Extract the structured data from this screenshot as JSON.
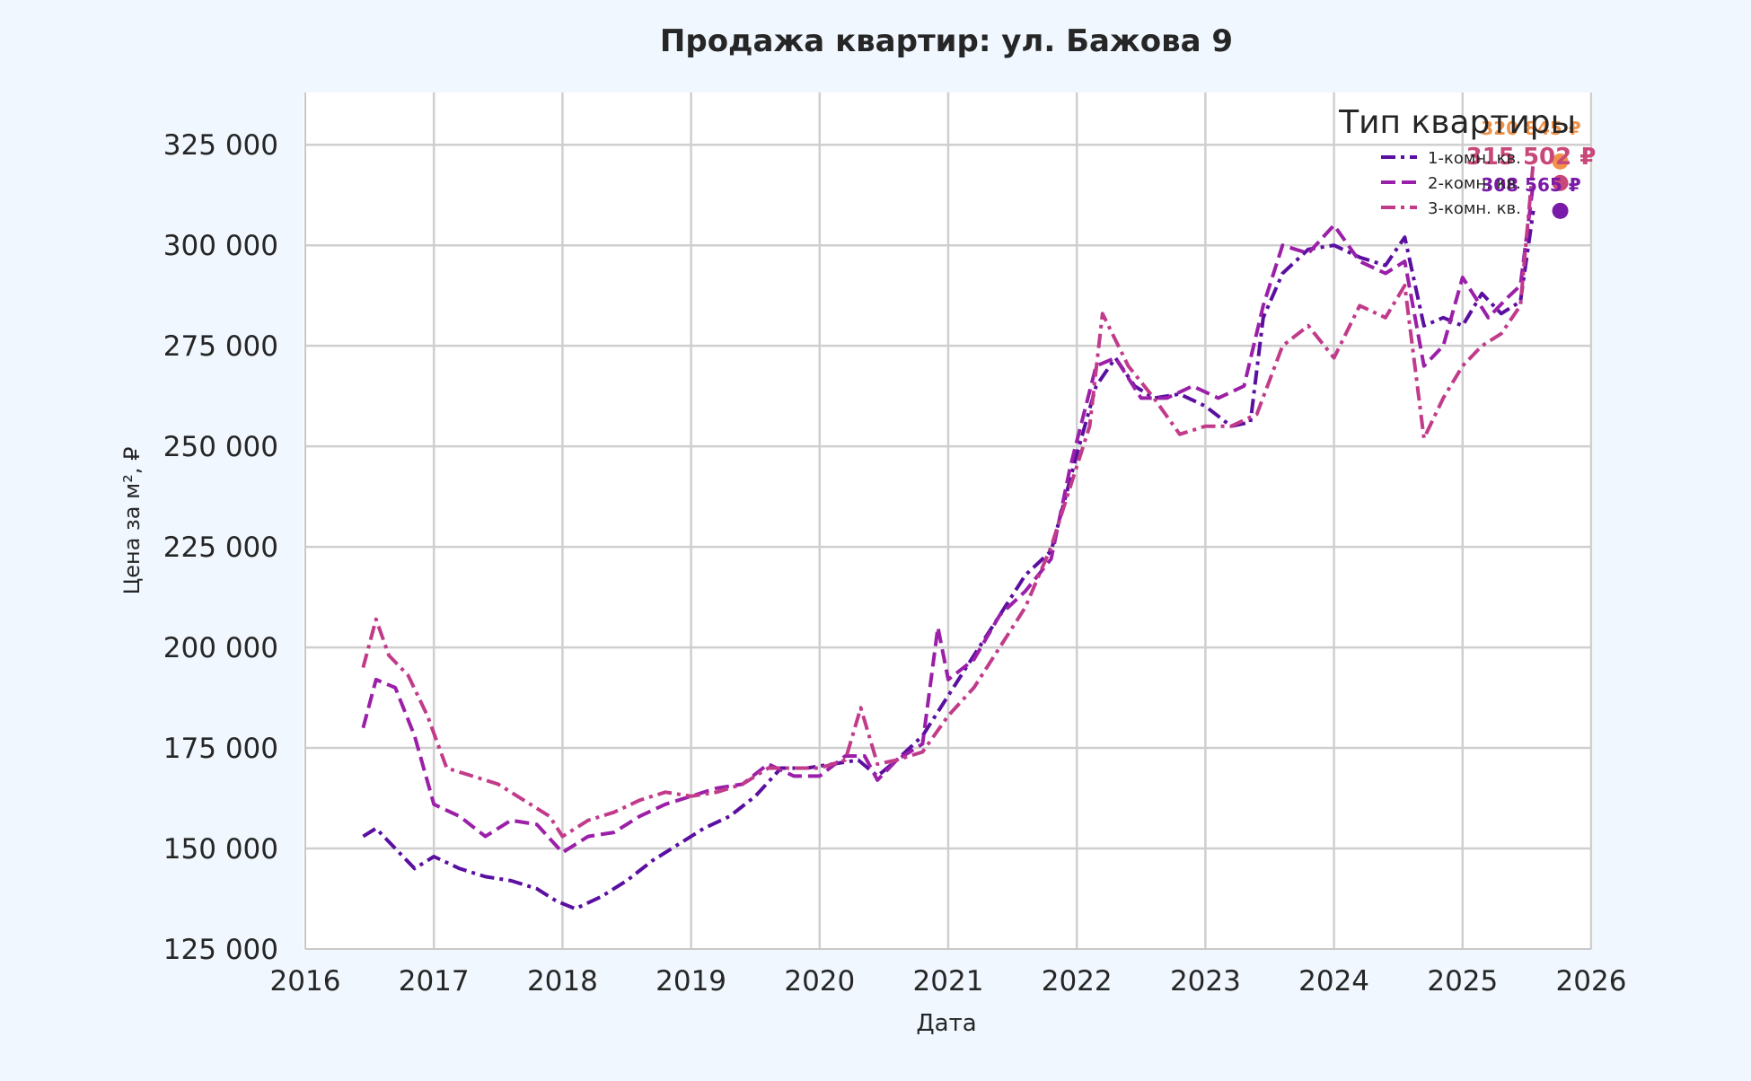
{
  "chart_data": {
    "type": "line",
    "title": "Продажа квартир: ул. Бажова 9",
    "xlabel": "Дата",
    "ylabel": "Цена за м², ₽",
    "xlim": [
      2016,
      2026
    ],
    "ylim": [
      125000,
      338000
    ],
    "x_ticks": [
      2016,
      2017,
      2018,
      2019,
      2020,
      2021,
      2022,
      2023,
      2024,
      2025,
      2026
    ],
    "y_ticks": [
      125000,
      150000,
      175000,
      200000,
      225000,
      250000,
      275000,
      300000,
      325000
    ],
    "y_tick_labels": [
      "125 000",
      "150 000",
      "175 000",
      "200 000",
      "225 000",
      "250 000",
      "275 000",
      "300 000",
      "325 000"
    ],
    "grid": true,
    "legend_title": "Тип квартиры",
    "legend_position": "top-right",
    "series": [
      {
        "name": "1-комн. кв.",
        "color": "#5a0fa0",
        "dash": "dashdot",
        "x": [
          2016.45,
          2016.55,
          2016.7,
          2016.85,
          2017.0,
          2017.2,
          2017.4,
          2017.6,
          2017.8,
          2017.95,
          2018.1,
          2018.3,
          2018.5,
          2018.7,
          2018.9,
          2019.1,
          2019.3,
          2019.5,
          2019.7,
          2019.9,
          2020.1,
          2020.3,
          2020.45,
          2020.6,
          2020.8,
          2021.0,
          2021.2,
          2021.4,
          2021.6,
          2021.8,
          2022.0,
          2022.15,
          2022.3,
          2022.45,
          2022.6,
          2022.8,
          2023.0,
          2023.2,
          2023.35,
          2023.45,
          2023.6,
          2023.8,
          2024.0,
          2024.2,
          2024.4,
          2024.55,
          2024.7,
          2024.85,
          2025.0,
          2025.15,
          2025.3,
          2025.45,
          2025.55
        ],
        "y": [
          153000,
          155000,
          150000,
          145000,
          148000,
          145000,
          143000,
          142000,
          140000,
          137000,
          135000,
          138000,
          142000,
          147000,
          151000,
          155000,
          158000,
          163000,
          170000,
          170000,
          171000,
          172000,
          168000,
          172000,
          178000,
          188000,
          198000,
          208000,
          218000,
          224000,
          248000,
          265000,
          272000,
          265000,
          262000,
          263000,
          260000,
          255000,
          256000,
          282000,
          293000,
          299000,
          300000,
          297000,
          295000,
          302000,
          280000,
          282000,
          280000,
          288000,
          283000,
          286000,
          308565
        ]
      },
      {
        "name": "2-комн. кв.",
        "color": "#9b1fa8",
        "dash": "dashed",
        "x": [
          2016.45,
          2016.55,
          2016.7,
          2016.85,
          2017.0,
          2017.2,
          2017.4,
          2017.6,
          2017.8,
          2018.0,
          2018.2,
          2018.4,
          2018.6,
          2018.8,
          2019.0,
          2019.2,
          2019.4,
          2019.6,
          2019.8,
          2020.0,
          2020.2,
          2020.35,
          2020.45,
          2020.6,
          2020.8,
          2020.92,
          2021.0,
          2021.2,
          2021.4,
          2021.6,
          2021.8,
          2021.95,
          2022.15,
          2022.3,
          2022.5,
          2022.7,
          2022.9,
          2023.1,
          2023.3,
          2023.45,
          2023.6,
          2023.8,
          2024.0,
          2024.2,
          2024.4,
          2024.55,
          2024.7,
          2024.85,
          2025.0,
          2025.2,
          2025.35,
          2025.45,
          2025.55
        ],
        "y": [
          180000,
          192000,
          190000,
          178000,
          161000,
          158000,
          153000,
          157000,
          156000,
          149000,
          153000,
          154000,
          158000,
          161000,
          163000,
          165000,
          166000,
          171000,
          168000,
          168000,
          173000,
          173000,
          167000,
          172000,
          176000,
          205000,
          192000,
          197000,
          208000,
          214000,
          222000,
          245000,
          270000,
          272000,
          262000,
          262000,
          265000,
          262000,
          265000,
          285000,
          300000,
          298000,
          305000,
          296000,
          293000,
          296000,
          270000,
          275000,
          292000,
          282000,
          287000,
          290000,
          315502
        ]
      },
      {
        "name": "3-комн. кв.",
        "color": "#c13b8a",
        "dash": "dashdot",
        "x": [
          2016.45,
          2016.55,
          2016.65,
          2016.8,
          2016.95,
          2017.1,
          2017.3,
          2017.5,
          2017.7,
          2017.9,
          2018.0,
          2018.2,
          2018.4,
          2018.6,
          2018.8,
          2019.0,
          2019.2,
          2019.4,
          2019.6,
          2019.8,
          2020.0,
          2020.2,
          2020.32,
          2020.45,
          2020.6,
          2020.8,
          2021.0,
          2021.2,
          2021.4,
          2021.6,
          2021.8,
          2021.95,
          2022.1,
          2022.2,
          2022.4,
          2022.6,
          2022.8,
          2023.0,
          2023.2,
          2023.4,
          2023.6,
          2023.8,
          2024.0,
          2024.2,
          2024.4,
          2024.55,
          2024.7,
          2024.85,
          2025.0,
          2025.15,
          2025.3,
          2025.45,
          2025.55
        ],
        "y": [
          195000,
          207000,
          198000,
          193000,
          183000,
          170000,
          168000,
          166000,
          162000,
          158000,
          153000,
          157000,
          159000,
          162000,
          164000,
          163000,
          164000,
          166000,
          170000,
          170000,
          170000,
          172000,
          185000,
          171000,
          172000,
          174000,
          183000,
          190000,
          200000,
          210000,
          225000,
          240000,
          255000,
          283000,
          270000,
          262000,
          253000,
          255000,
          255000,
          258000,
          275000,
          280000,
          272000,
          285000,
          282000,
          290000,
          252000,
          262000,
          270000,
          275000,
          278000,
          285000,
          320845
        ]
      }
    ],
    "annotations": [
      {
        "label": "320 845 ₽",
        "x": 2025.55,
        "y": 320845,
        "color": "#f0924a"
      },
      {
        "label": "315 502 ₽",
        "x": 2025.55,
        "y": 315502,
        "color": "#c9487a"
      },
      {
        "label": "308 565 ₽",
        "x": 2025.55,
        "y": 308565,
        "color": "#7a1aa8"
      }
    ]
  }
}
